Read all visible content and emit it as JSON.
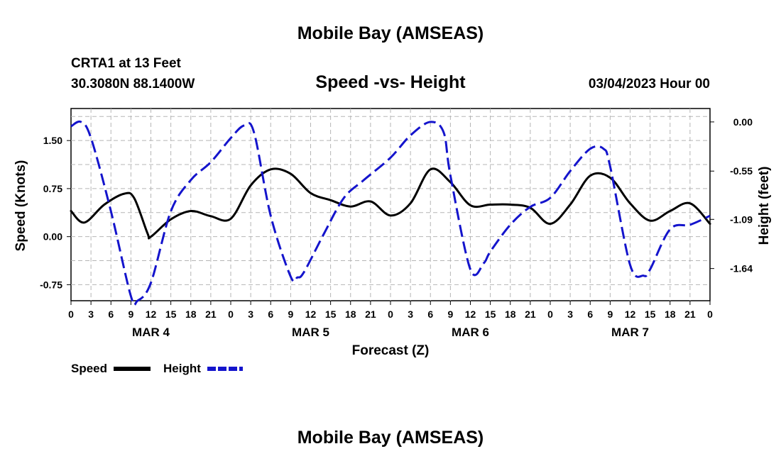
{
  "page": {
    "title_top": "Mobile Bay (AMSEAS)",
    "title_bottom": "Mobile Bay (AMSEAS)"
  },
  "chart_data": {
    "type": "line",
    "title": "Speed -vs- Height",
    "station": "CRTA1 at 13 Feet",
    "location": "30.3080N  88.1400W",
    "timestamp": "03/04/2023 Hour 00",
    "xlabel": "Forecast (Z)",
    "ylabel_left": "Speed (Knots)",
    "ylabel_right": "Height (feet)",
    "x_unit": "forecast hour",
    "xlim": [
      0,
      96
    ],
    "ylim_left": [
      -1.0,
      2.0
    ],
    "ylim_right": [
      -2.0,
      0.15
    ],
    "x_tick_values": [
      0,
      3,
      6,
      9,
      12,
      15,
      18,
      21,
      24,
      27,
      30,
      33,
      36,
      39,
      42,
      45,
      48,
      51,
      54,
      57,
      60,
      63,
      66,
      69,
      72,
      75,
      78,
      81,
      84,
      87,
      90,
      93,
      96
    ],
    "x_tick_labels": [
      "0",
      "3",
      "6",
      "9",
      "12",
      "15",
      "18",
      "21",
      "0",
      "3",
      "6",
      "9",
      "12",
      "15",
      "18",
      "21",
      "0",
      "3",
      "6",
      "9",
      "12",
      "15",
      "18",
      "21",
      "0",
      "3",
      "6",
      "9",
      "12",
      "15",
      "18",
      "21",
      "0"
    ],
    "day_labels": [
      {
        "label": "MAR 4",
        "hour": 12
      },
      {
        "label": "MAR 5",
        "hour": 36
      },
      {
        "label": "MAR 6",
        "hour": 60
      },
      {
        "label": "MAR 7",
        "hour": 84
      }
    ],
    "y_left_ticks": [
      {
        "value": -0.75,
        "label": "-0.75"
      },
      {
        "value": 0.0,
        "label": "0.00"
      },
      {
        "value": 0.75,
        "label": "0.75"
      },
      {
        "value": 1.5,
        "label": "1.50"
      }
    ],
    "y_right_ticks": [
      {
        "value": 0.0,
        "label": "0.00"
      },
      {
        "value": -0.55,
        "label": "-0.55"
      },
      {
        "value": -1.09,
        "label": "-1.09"
      },
      {
        "value": -1.64,
        "label": "-1.64"
      }
    ],
    "grid": true,
    "legend_position": "bottom-left",
    "series": [
      {
        "name": "Speed",
        "axis": "left",
        "color": "#000000",
        "style": "solid",
        "x": [
          0,
          2,
          5,
          8,
          9.5,
          11.5,
          12,
          15,
          18,
          21,
          24,
          27,
          30,
          33,
          36,
          39,
          42,
          45,
          48,
          51,
          54,
          57,
          60,
          63,
          66,
          69,
          72,
          75,
          78,
          81,
          84,
          87,
          90,
          93,
          96
        ],
        "values": [
          0.4,
          0.22,
          0.5,
          0.67,
          0.6,
          0.05,
          0.0,
          0.27,
          0.4,
          0.32,
          0.28,
          0.8,
          1.05,
          0.98,
          0.68,
          0.57,
          0.47,
          0.55,
          0.33,
          0.52,
          1.05,
          0.85,
          0.49,
          0.5,
          0.5,
          0.45,
          0.2,
          0.5,
          0.95,
          0.92,
          0.52,
          0.25,
          0.4,
          0.52,
          0.2
        ]
      },
      {
        "name": "Height",
        "axis": "right",
        "color": "#1414cc",
        "style": "dashed",
        "x": [
          0,
          1.5,
          3,
          6,
          9,
          10,
          12,
          15,
          18,
          21,
          24,
          26,
          27.5,
          30,
          33,
          34,
          35,
          38,
          41,
          44,
          48,
          51,
          54,
          56,
          57,
          60,
          62,
          63,
          66,
          69,
          72,
          75,
          78,
          80,
          81,
          84,
          86,
          87,
          90,
          93,
          96
        ],
        "values": [
          -0.05,
          0.0,
          -0.18,
          -1.0,
          -1.95,
          -2.0,
          -1.8,
          -1.0,
          -0.65,
          -0.45,
          -0.18,
          -0.04,
          -0.12,
          -1.05,
          -1.73,
          -1.74,
          -1.68,
          -1.25,
          -0.85,
          -0.65,
          -0.4,
          -0.15,
          0.0,
          -0.12,
          -0.6,
          -1.65,
          -1.58,
          -1.45,
          -1.15,
          -0.95,
          -0.85,
          -0.55,
          -0.3,
          -0.3,
          -0.5,
          -1.6,
          -1.72,
          -1.65,
          -1.2,
          -1.15,
          -1.05
        ]
      }
    ]
  }
}
